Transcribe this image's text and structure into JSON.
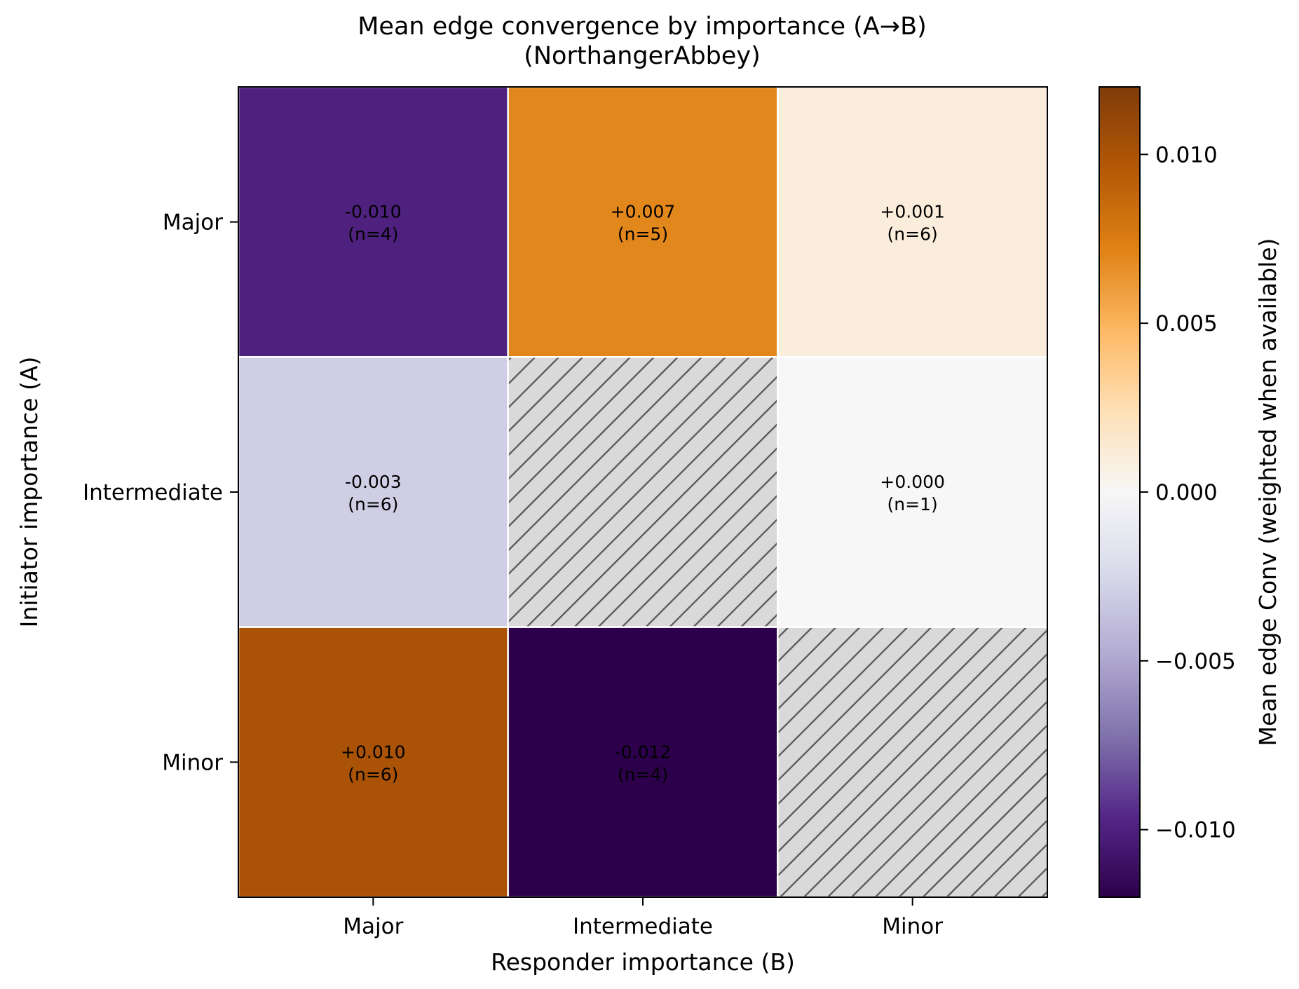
{
  "chart_data": {
    "type": "heatmap",
    "title": "Mean edge convergence by importance (A→B)",
    "subtitle": "(NorthangerAbbey)",
    "xlabel": "Responder importance (B)",
    "ylabel": "Initiator importance (A)",
    "x_categories": [
      "Major",
      "Intermediate",
      "Minor"
    ],
    "y_categories": [
      "Major",
      "Intermediate",
      "Minor"
    ],
    "cells": [
      [
        {
          "value": -0.01,
          "label": "-0.010",
          "n_label": "(n=4)"
        },
        {
          "value": 0.007,
          "label": "+0.007",
          "n_label": "(n=5)"
        },
        {
          "value": 0.001,
          "label": "+0.001",
          "n_label": "(n=6)"
        }
      ],
      [
        {
          "value": -0.003,
          "label": "-0.003",
          "n_label": "(n=6)"
        },
        null,
        {
          "value": 0.0,
          "label": "+0.000",
          "n_label": "(n=1)"
        }
      ],
      [
        {
          "value": 0.01,
          "label": "+0.010",
          "n_label": "(n=6)"
        },
        {
          "value": -0.012,
          "label": "-0.012",
          "n_label": "(n=4)"
        },
        null
      ]
    ],
    "missing_style": "hatched grey",
    "colorbar": {
      "label": "Mean edge Conv (weighted when available)",
      "colormap": "PuOr_r",
      "range": [
        -0.012,
        0.012
      ],
      "ticks": [
        -0.01,
        -0.005,
        0.0,
        0.005,
        0.01
      ],
      "tick_labels": [
        "−0.010",
        "−0.005",
        "0.000",
        "0.005",
        "0.010"
      ]
    },
    "grid": false,
    "legend": "none"
  }
}
